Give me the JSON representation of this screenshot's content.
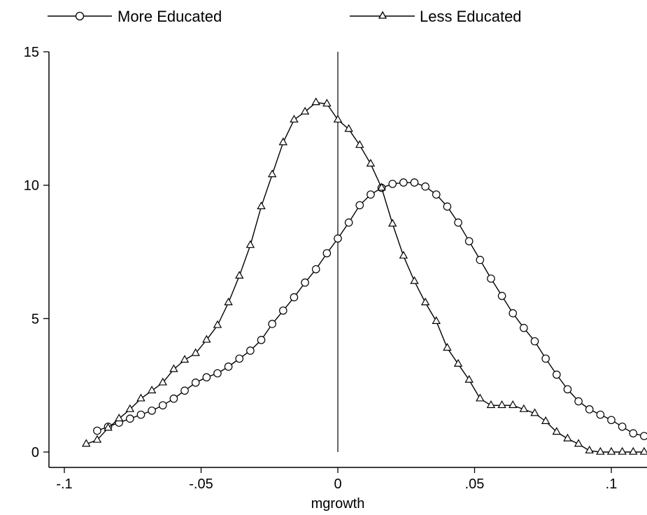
{
  "chart_data": {
    "type": "line",
    "xlabel": "mgrowth",
    "ylabel": "",
    "xlim": [
      -0.1,
      0.115
    ],
    "ylim": [
      0,
      15
    ],
    "xticks": [
      {
        "value": -0.1,
        "label": "-.1"
      },
      {
        "value": -0.05,
        "label": "-.05"
      },
      {
        "value": 0,
        "label": "0"
      },
      {
        "value": 0.05,
        "label": ".05"
      },
      {
        "value": 0.1,
        "label": ".1"
      }
    ],
    "yticks": [
      {
        "value": 0,
        "label": "0"
      },
      {
        "value": 5,
        "label": "5"
      },
      {
        "value": 10,
        "label": "10"
      },
      {
        "value": 15,
        "label": "15"
      }
    ],
    "reference_line": {
      "x": 0
    },
    "grid": false,
    "legend_position": "top",
    "series": [
      {
        "name": "More Educated",
        "marker": "circle",
        "x": [
          -0.088,
          -0.084,
          -0.08,
          -0.076,
          -0.072,
          -0.068,
          -0.064,
          -0.06,
          -0.056,
          -0.052,
          -0.048,
          -0.044,
          -0.04,
          -0.036,
          -0.032,
          -0.028,
          -0.024,
          -0.02,
          -0.016,
          -0.012,
          -0.008,
          -0.004,
          0.0,
          0.004,
          0.008,
          0.012,
          0.016,
          0.02,
          0.024,
          0.028,
          0.032,
          0.036,
          0.04,
          0.044,
          0.048,
          0.052,
          0.056,
          0.06,
          0.064,
          0.068,
          0.072,
          0.076,
          0.08,
          0.084,
          0.088,
          0.092,
          0.096,
          0.1,
          0.104,
          0.108,
          0.112
        ],
        "y": [
          0.8,
          0.95,
          1.1,
          1.25,
          1.4,
          1.55,
          1.75,
          2.0,
          2.3,
          2.6,
          2.8,
          2.95,
          3.2,
          3.5,
          3.8,
          4.2,
          4.8,
          5.3,
          5.8,
          6.35,
          6.85,
          7.45,
          8.0,
          8.6,
          9.25,
          9.65,
          9.9,
          10.05,
          10.1,
          10.1,
          9.95,
          9.65,
          9.2,
          8.6,
          7.9,
          7.2,
          6.5,
          5.85,
          5.2,
          4.65,
          4.15,
          3.5,
          2.9,
          2.35,
          1.9,
          1.6,
          1.4,
          1.2,
          0.95,
          0.7,
          0.6
        ]
      },
      {
        "name": "Less Educated",
        "marker": "triangle",
        "x": [
          -0.092,
          -0.088,
          -0.084,
          -0.08,
          -0.076,
          -0.072,
          -0.068,
          -0.064,
          -0.06,
          -0.056,
          -0.052,
          -0.048,
          -0.044,
          -0.04,
          -0.036,
          -0.032,
          -0.028,
          -0.024,
          -0.02,
          -0.016,
          -0.012,
          -0.008,
          -0.004,
          0.0,
          0.004,
          0.008,
          0.012,
          0.016,
          0.02,
          0.024,
          0.028,
          0.032,
          0.036,
          0.04,
          0.044,
          0.048,
          0.052,
          0.056,
          0.06,
          0.064,
          0.068,
          0.072,
          0.076,
          0.08,
          0.084,
          0.088,
          0.092,
          0.096,
          0.1,
          0.104,
          0.108,
          0.112
        ],
        "y": [
          0.3,
          0.45,
          0.9,
          1.25,
          1.6,
          2.0,
          2.3,
          2.6,
          3.1,
          3.45,
          3.7,
          4.2,
          4.75,
          5.6,
          6.6,
          7.75,
          9.2,
          10.4,
          11.6,
          12.45,
          12.75,
          13.1,
          13.05,
          12.45,
          12.1,
          11.5,
          10.8,
          9.9,
          8.55,
          7.35,
          6.4,
          5.6,
          4.9,
          3.9,
          3.3,
          2.7,
          2.0,
          1.75,
          1.75,
          1.75,
          1.6,
          1.45,
          1.15,
          0.75,
          0.5,
          0.3,
          0.05,
          0.0,
          0.0,
          0.0,
          0.0,
          0.0
        ]
      }
    ]
  }
}
